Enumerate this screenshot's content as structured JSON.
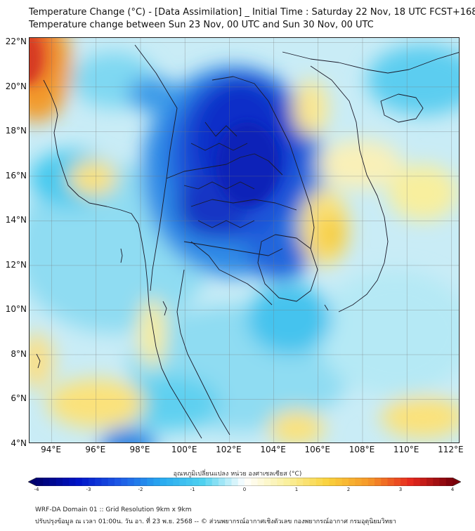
{
  "header": {
    "title_line1": "Temperature Change (°C) - [Data Assimilation] _ Initial Time : Saturday 22 Nov, 18 UTC FCST+168",
    "title_line2": "Temperature change between Sun 23 Nov, 00 UTC and Sun 30 Nov, 00 UTC"
  },
  "map": {
    "lat_labels": [
      "22°N",
      "20°N",
      "18°N",
      "16°N",
      "14°N",
      "12°N",
      "10°N",
      "8°N",
      "6°N",
      "4°N"
    ],
    "lat_values": [
      22,
      20,
      18,
      16,
      14,
      12,
      10,
      8,
      6,
      4
    ],
    "lon_labels": [
      "94°E",
      "96°E",
      "98°E",
      "100°E",
      "102°E",
      "104°E",
      "106°E",
      "108°E",
      "110°E",
      "112°E"
    ],
    "lon_values": [
      94,
      96,
      98,
      100,
      102,
      104,
      106,
      108,
      110,
      112
    ],
    "lon_range": [
      93,
      112.4
    ],
    "lat_range": [
      4,
      22.2
    ]
  },
  "colorbar": {
    "title": "อุณหภูมิเปลี่ยนแปลง หน่วย องศาเซลเซียส (°C)",
    "ticks": [
      "-4",
      "-3",
      "-2",
      "-1",
      "0",
      "1",
      "2",
      "3",
      "4"
    ],
    "range": [
      -4,
      4
    ]
  },
  "footer": {
    "line1": "WRF-DA Domain 01 :: Grid Resolution 9km x 9km",
    "line2": "ปรับปรุงข้อมูล ณ เวลา 01:00น. วัน อา. ที่ 23 พ.ย. 2568 -- © ส่วนพยากรณ์อากาศเชิงตัวเลข กองพยากรณ์อากาศ กรมอุตุนิยมวิทยา"
  }
}
